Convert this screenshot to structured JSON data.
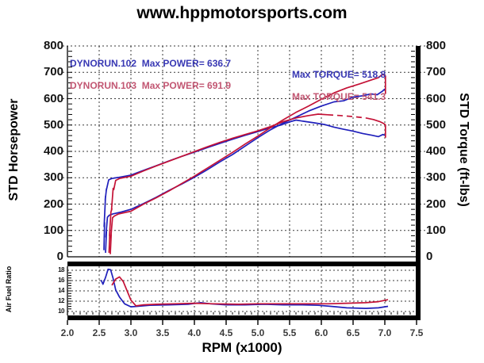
{
  "title": "www.hppmotorsports.com",
  "colors": {
    "run102": "#1f1fbb",
    "run103": "#c41236",
    "legend102_text": "#3838b4",
    "legend103_text": "#c25672",
    "grid": "#3a3a3a",
    "background": "#ffffff"
  },
  "chart_data": [
    {
      "type": "line",
      "name": "dyno-main",
      "title": "www.hppmotorsports.com",
      "xlabel": "RPM (x1000)",
      "ylabel_left": "STD Horsepower",
      "ylabel_right": "STD Torque (ft-lbs)",
      "xlim": [
        2.0,
        7.5
      ],
      "ylim": [
        0,
        800
      ],
      "grid": "dashed",
      "legend_position": "top-left-inside",
      "x_tick_values": [
        2.0,
        2.5,
        3.0,
        3.5,
        4.0,
        4.5,
        5.0,
        5.5,
        6.0,
        6.5,
        7.0,
        7.5
      ],
      "x_tick_labels": [
        "2.0",
        "2.5",
        "3.0",
        "3.5",
        "4.0",
        "4.5",
        "5.0",
        "5.5",
        "6.0",
        "6.5",
        "7.0",
        "7.5"
      ],
      "y_tick_values": [
        0,
        100,
        200,
        300,
        400,
        500,
        600,
        700,
        800
      ],
      "y_tick_labels": [
        "0",
        "100",
        "200",
        "300",
        "400",
        "500",
        "600",
        "700",
        "800"
      ],
      "legend": [
        {
          "run_label": "DYNORUN.102",
          "max_power": 636.7,
          "max_torque": 518.8,
          "power_text": "DYNORUN.102  Max POWER= 636.7",
          "torque_text": "Max TORQUE= 518.8",
          "text_color": "#3838b4"
        },
        {
          "run_label": "DYNORUN.103",
          "max_power": 691.9,
          "max_torque": 541.3,
          "power_text": "DYNORUN.103  Max POWER= 691.9",
          "torque_text": "Max TORQUE= 541.3",
          "text_color": "#c25672"
        }
      ],
      "series": [
        {
          "name": "run102-horsepower",
          "color": "#1f1fbb",
          "dashed": false,
          "points": [
            [
              2.6,
              15
            ],
            [
              2.615,
              95
            ],
            [
              2.605,
              75
            ],
            [
              2.63,
              150
            ],
            [
              2.66,
              158
            ],
            [
              2.72,
              163
            ],
            [
              2.85,
              170
            ],
            [
              3.0,
              180
            ],
            [
              3.2,
              202
            ],
            [
              3.4,
              226
            ],
            [
              3.6,
              252
            ],
            [
              3.8,
              276
            ],
            [
              4.0,
              302
            ],
            [
              4.2,
              330
            ],
            [
              4.4,
              360
            ],
            [
              4.6,
              388
            ],
            [
              4.8,
              420
            ],
            [
              5.0,
              452
            ],
            [
              5.2,
              482
            ],
            [
              5.4,
              508
            ],
            [
              5.6,
              530
            ],
            [
              5.8,
              553
            ],
            [
              6.0,
              572
            ],
            [
              6.2,
              588
            ],
            [
              6.35,
              592
            ],
            [
              6.5,
              606
            ],
            [
              6.65,
              611
            ],
            [
              6.78,
              618
            ],
            [
              6.88,
              615
            ],
            [
              6.96,
              628
            ],
            [
              7.0,
              636.7
            ]
          ]
        },
        {
          "name": "run102-torque",
          "color": "#1f1fbb",
          "dashed": false,
          "points": [
            [
              2.575,
              25
            ],
            [
              2.585,
              130
            ],
            [
              2.578,
              115
            ],
            [
              2.6,
              230
            ],
            [
              2.595,
              215
            ],
            [
              2.615,
              258
            ],
            [
              2.61,
              250
            ],
            [
              2.65,
              292
            ],
            [
              2.7,
              297
            ],
            [
              2.8,
              301
            ],
            [
              3.0,
              310
            ],
            [
              3.2,
              328
            ],
            [
              3.4,
              346
            ],
            [
              3.6,
              364
            ],
            [
              3.8,
              381
            ],
            [
              4.0,
              397
            ],
            [
              4.2,
              414
            ],
            [
              4.4,
              430
            ],
            [
              4.6,
              446
            ],
            [
              4.8,
              461
            ],
            [
              5.0,
              475
            ],
            [
              5.2,
              490
            ],
            [
              5.35,
              499
            ],
            [
              5.5,
              512
            ],
            [
              5.6,
              518.8
            ],
            [
              5.75,
              513
            ],
            [
              5.9,
              508
            ],
            [
              6.05,
              502
            ],
            [
              6.2,
              492
            ],
            [
              6.35,
              484
            ],
            [
              6.5,
              477
            ],
            [
              6.65,
              468
            ],
            [
              6.8,
              461
            ],
            [
              6.9,
              456
            ],
            [
              6.97,
              464
            ],
            [
              7.0,
              461
            ]
          ]
        },
        {
          "name": "run103-horsepower",
          "color": "#c41236",
          "dashed": false,
          "points": [
            [
              2.675,
              10
            ],
            [
              2.69,
              85
            ],
            [
              2.683,
              70
            ],
            [
              2.71,
              148
            ],
            [
              2.74,
              155
            ],
            [
              2.8,
              162
            ],
            [
              3.0,
              173
            ],
            [
              3.2,
              200
            ],
            [
              3.4,
              224
            ],
            [
              3.6,
              250
            ],
            [
              3.8,
              278
            ],
            [
              4.0,
              306
            ],
            [
              4.2,
              336
            ],
            [
              4.4,
              366
            ],
            [
              4.6,
              396
            ],
            [
              4.8,
              428
            ],
            [
              5.0,
              458
            ],
            [
              5.2,
              490
            ],
            [
              5.4,
              520
            ],
            [
              5.6,
              548
            ],
            [
              5.8,
              572
            ],
            [
              6.0,
              598
            ],
            [
              6.2,
              622
            ],
            [
              6.4,
              641
            ],
            [
              6.6,
              656
            ],
            [
              6.8,
              672
            ],
            [
              6.9,
              680
            ],
            [
              6.96,
              691.9
            ],
            [
              7.0,
              689
            ],
            [
              7.01,
              686
            ],
            [
              7.01,
              618
            ]
          ]
        },
        {
          "name": "run103-torque-rise",
          "color": "#c41236",
          "dashed": false,
          "points": [
            [
              2.655,
              15
            ],
            [
              2.668,
              95
            ],
            [
              2.662,
              80
            ],
            [
              2.685,
              170
            ],
            [
              2.7,
              182
            ],
            [
              2.694,
              176
            ],
            [
              2.72,
              260
            ],
            [
              2.73,
              255
            ],
            [
              2.76,
              290
            ],
            [
              2.82,
              297
            ],
            [
              3.0,
              306
            ],
            [
              3.2,
              326
            ],
            [
              3.4,
              345
            ],
            [
              3.6,
              363
            ],
            [
              3.8,
              381
            ],
            [
              4.0,
              399
            ],
            [
              4.2,
              417
            ],
            [
              4.4,
              434
            ],
            [
              4.6,
              450
            ],
            [
              4.8,
              464
            ],
            [
              5.0,
              478
            ],
            [
              5.2,
              494
            ],
            [
              5.4,
              513
            ],
            [
              5.6,
              527
            ],
            [
              5.8,
              536
            ],
            [
              5.95,
              541.3
            ],
            [
              6.1,
              539
            ]
          ]
        },
        {
          "name": "run103-torque-dashed",
          "color": "#c41236",
          "dashed": true,
          "points": [
            [
              6.1,
              539
            ],
            [
              6.3,
              536
            ],
            [
              6.5,
              532
            ],
            [
              6.7,
              527
            ]
          ]
        },
        {
          "name": "run103-torque-end",
          "color": "#c41236",
          "dashed": false,
          "points": [
            [
              6.7,
              527
            ],
            [
              6.82,
              521
            ],
            [
              6.92,
              513
            ],
            [
              6.98,
              506
            ],
            [
              7.0,
              503
            ],
            [
              7.01,
              500
            ],
            [
              7.01,
              452
            ]
          ]
        }
      ]
    },
    {
      "type": "line",
      "name": "air-fuel-ratio",
      "ylabel": "Air Fuel Ratio",
      "xlim": [
        2.0,
        7.5
      ],
      "ylim": [
        10,
        18
      ],
      "grid": "dashed",
      "y_tick_values": [
        18,
        16,
        14,
        12,
        10
      ],
      "y_tick_labels": [
        "18",
        "16",
        "14",
        "12",
        "10"
      ],
      "series": [
        {
          "name": "run102-afr",
          "color": "#1f1fbb",
          "dashed": false,
          "points": [
            [
              2.53,
              16.1
            ],
            [
              2.56,
              15.3
            ],
            [
              2.6,
              16.6
            ],
            [
              2.64,
              18.2
            ],
            [
              2.68,
              18.1
            ],
            [
              2.72,
              16.4
            ],
            [
              2.76,
              14.2
            ],
            [
              2.82,
              12.8
            ],
            [
              2.9,
              11.5
            ],
            [
              3.0,
              10.9
            ],
            [
              3.1,
              11.0
            ],
            [
              3.3,
              11.2
            ],
            [
              3.6,
              11.3
            ],
            [
              3.9,
              11.4
            ],
            [
              4.1,
              11.7
            ],
            [
              4.25,
              11.5
            ],
            [
              4.5,
              11.3
            ],
            [
              4.8,
              11.3
            ],
            [
              5.1,
              11.4
            ],
            [
              5.4,
              11.3
            ],
            [
              5.7,
              11.3
            ],
            [
              5.95,
              11.2
            ],
            [
              6.15,
              11.0
            ],
            [
              6.4,
              10.7
            ],
            [
              6.7,
              10.6
            ],
            [
              6.9,
              10.7
            ],
            [
              7.05,
              11.0
            ]
          ]
        },
        {
          "name": "run103-afr",
          "color": "#c41236",
          "dashed": false,
          "points": [
            [
              2.7,
              15.1
            ],
            [
              2.76,
              16.3
            ],
            [
              2.82,
              16.7
            ],
            [
              2.88,
              15.8
            ],
            [
              2.94,
              14.0
            ],
            [
              3.0,
              12.2
            ],
            [
              3.08,
              11.1
            ],
            [
              3.2,
              11.3
            ],
            [
              3.4,
              11.4
            ],
            [
              3.7,
              11.5
            ],
            [
              4.0,
              11.6
            ],
            [
              4.3,
              11.5
            ],
            [
              4.7,
              11.4
            ],
            [
              5.0,
              11.5
            ],
            [
              5.4,
              11.5
            ],
            [
              5.8,
              11.5
            ],
            [
              6.1,
              11.5
            ],
            [
              6.4,
              11.6
            ],
            [
              6.7,
              11.7
            ],
            [
              6.9,
              11.9
            ],
            [
              7.05,
              12.3
            ]
          ]
        }
      ]
    }
  ]
}
